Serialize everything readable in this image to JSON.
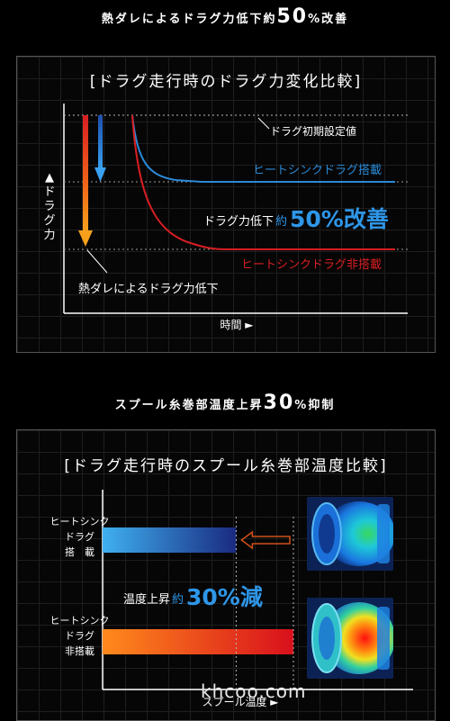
{
  "heading1": {
    "text": "熱ダレによるドラグ力低下約",
    "num": "50",
    "tail": "%改善"
  },
  "heading2": {
    "text": "スプール糸巻部温度上昇",
    "num": "30",
    "tail": "%抑制"
  },
  "chart1": {
    "title": "[ドラグ走行時のドラグ力変化比較]",
    "ylabel": "▲ドラグ力",
    "xlabel": "時間 ►",
    "initial_label": "ドラグ初期設定値",
    "series_with": "ヒートシンクドラグ搭載",
    "series_without": "ヒートシンクドラグ非搭載",
    "reduction_prefix": "ドラグ力低下",
    "reduction_approx": "約",
    "reduction_value": "50%改善",
    "fade_label": "熱ダレによるドラグ力低下",
    "colors": {
      "with": "#2a8ad8",
      "without": "#d81e22",
      "highlight": "#2e96e8"
    }
  },
  "chart2": {
    "title": "[ドラグ走行時のスプール糸巻部温度比較]",
    "xlabel": "スプール温度 ►",
    "bar_with_label": [
      "ヒートシンク",
      "ドラグ",
      "搭　載"
    ],
    "bar_without_label": [
      "ヒートシンク",
      "ドラグ",
      "非搭載"
    ],
    "rise_prefix": "温度上昇",
    "rise_approx": "約",
    "rise_value": "30%減",
    "colors": {
      "with_start": "#3fb0f0",
      "with_end": "#1a2a80",
      "without_start": "#ff8a1c",
      "without_end": "#d8101c"
    }
  },
  "chart_data": [
    {
      "type": "line",
      "title": "[ドラグ走行時のドラグ力変化比較]",
      "xlabel": "時間",
      "ylabel": "ドラグ力",
      "series": [
        {
          "name": "ヒートシンクドラグ搭載",
          "relative_drop": 0.5
        },
        {
          "name": "ヒートシンクドラグ非搭載",
          "relative_drop": 1.0
        }
      ]
    },
    {
      "type": "bar",
      "title": "[ドラグ走行時のスプール糸巻部温度比較]",
      "xlabel": "スプール温度",
      "categories": [
        "ヒートシンクドラグ搭載",
        "ヒートシンクドラグ非搭載"
      ],
      "values": [
        0.7,
        1.0
      ]
    }
  ],
  "watermark": "khcoo.com"
}
